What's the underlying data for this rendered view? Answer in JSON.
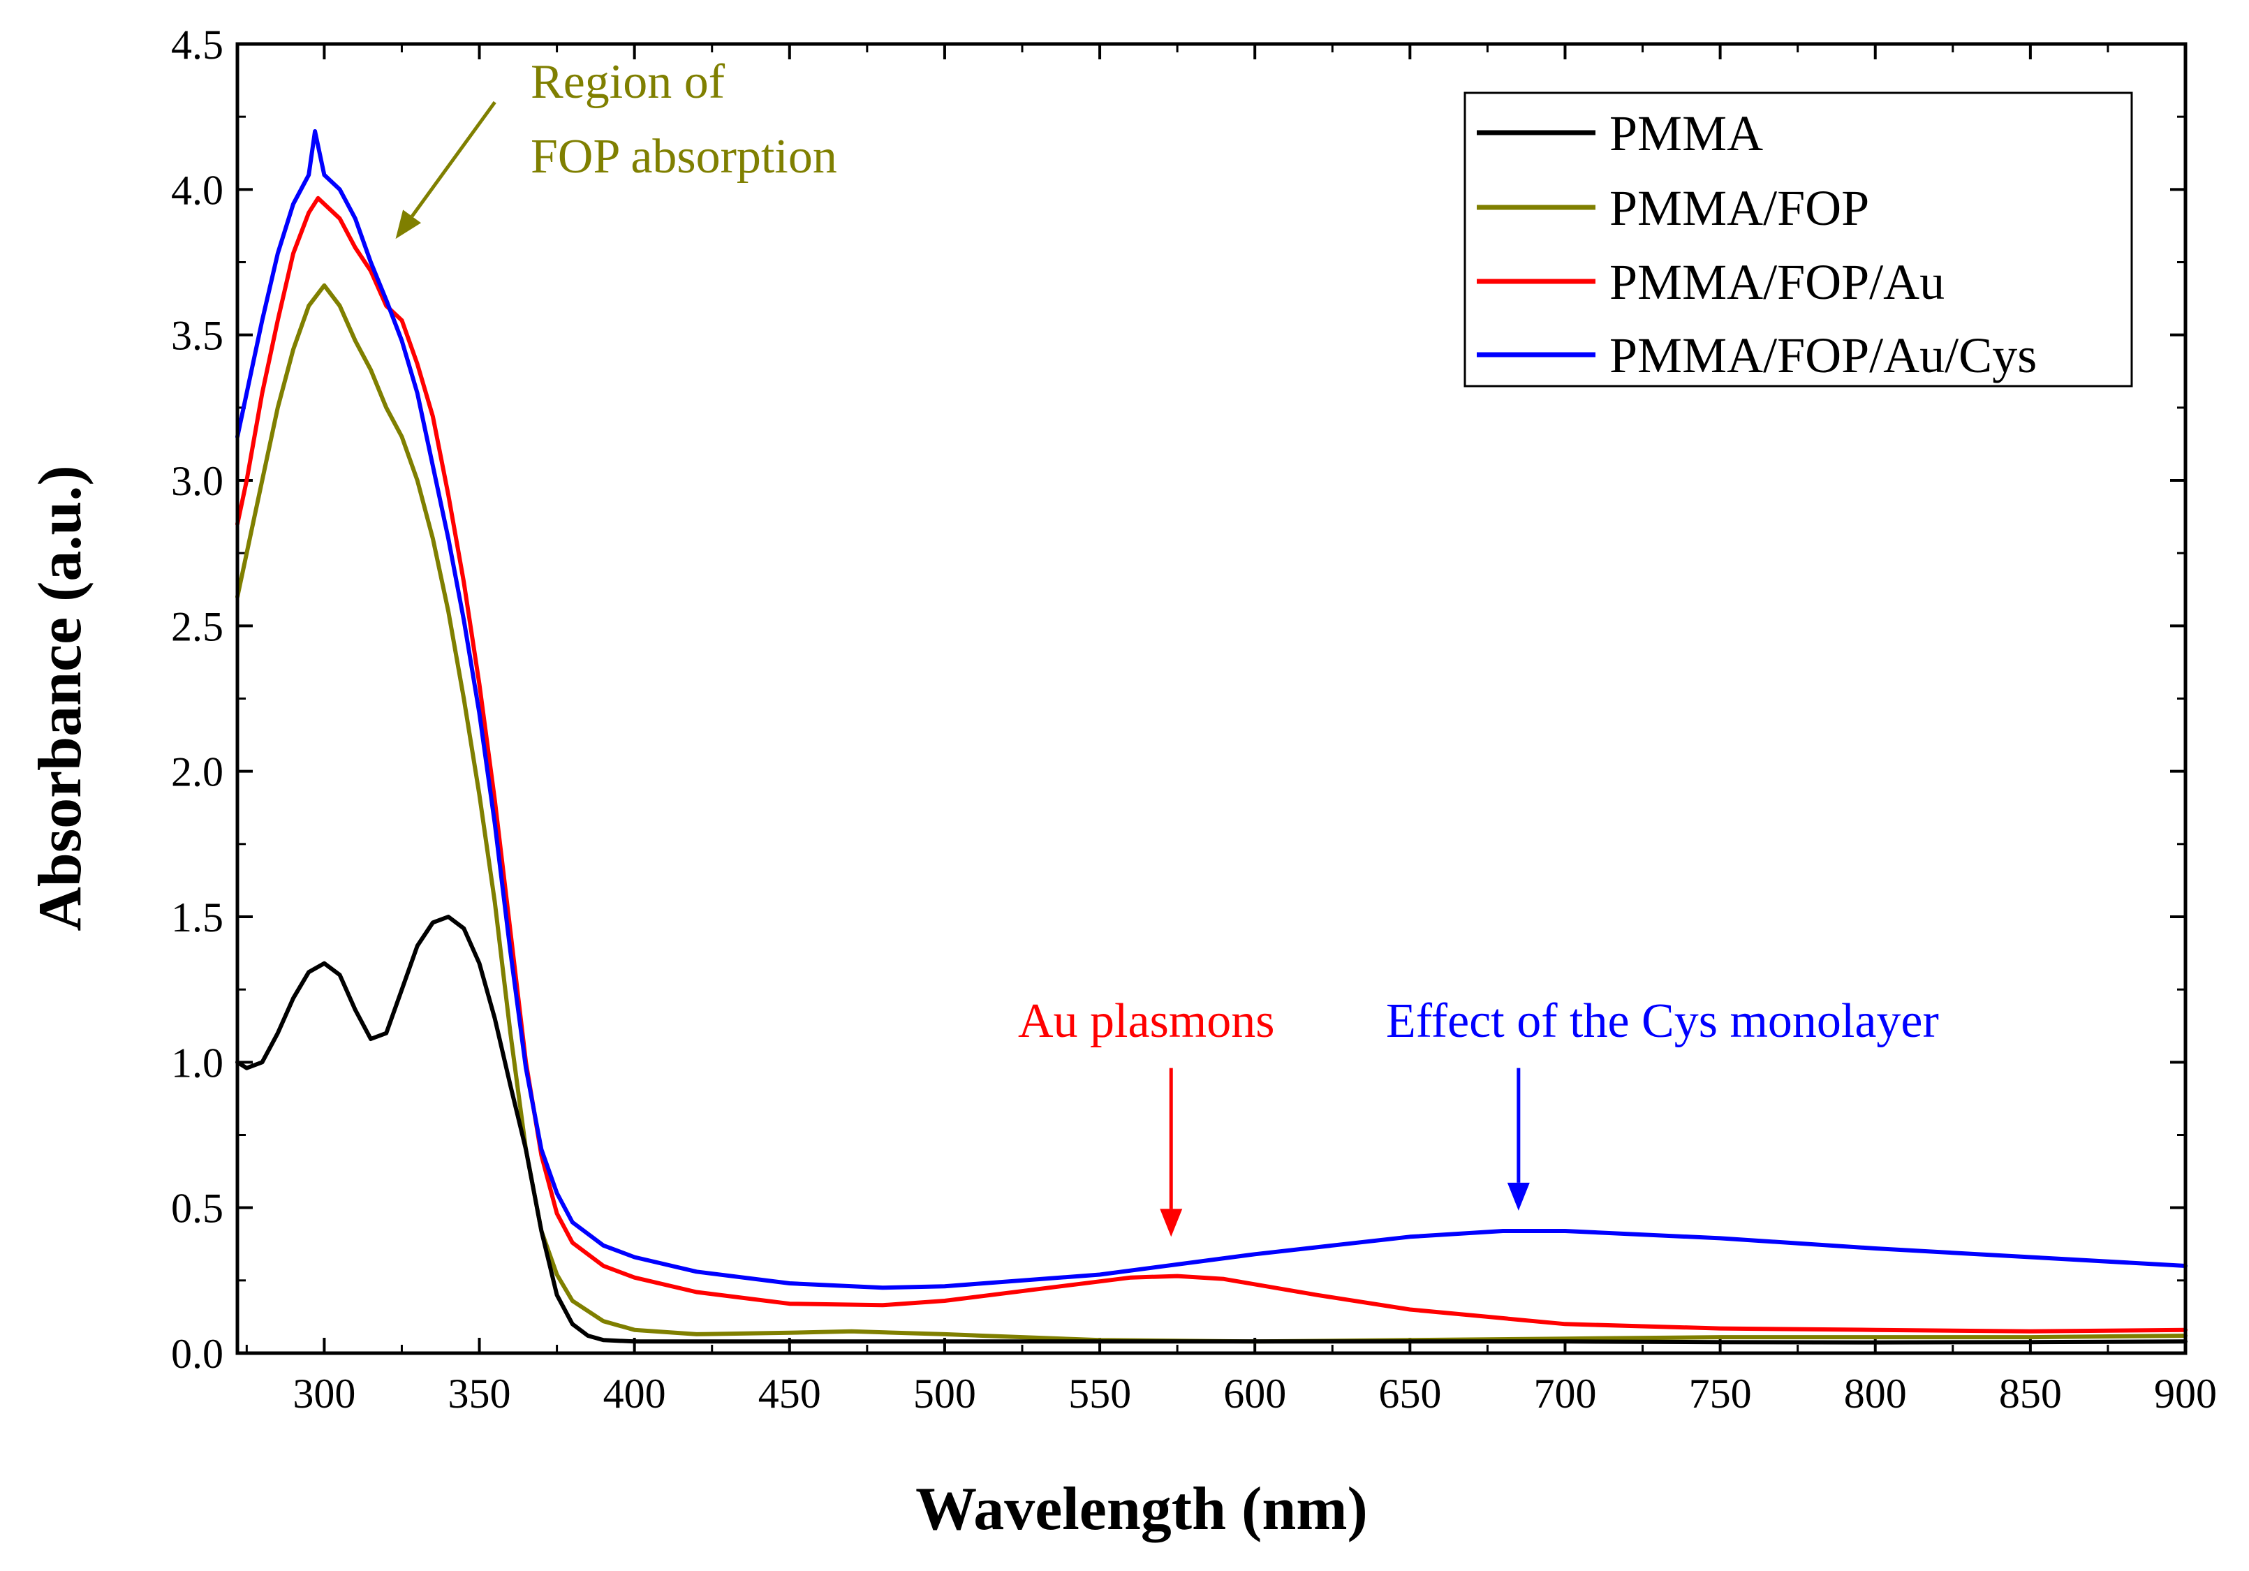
{
  "chart_data": {
    "type": "line",
    "xlabel": "Wavelength (nm)",
    "ylabel": "Absorbance (a.u.)",
    "xlim": [
      272,
      900
    ],
    "ylim": [
      0.0,
      4.5
    ],
    "x_ticks": [
      300,
      350,
      400,
      450,
      500,
      550,
      600,
      650,
      700,
      750,
      800,
      850,
      900
    ],
    "x_tick_labels": [
      "300",
      "350",
      "400",
      "450",
      "500",
      "550",
      "600",
      "650",
      "700",
      "750",
      "800",
      "850",
      "900"
    ],
    "y_ticks": [
      0.0,
      0.5,
      1.0,
      1.5,
      2.0,
      2.5,
      3.0,
      3.5,
      4.0,
      4.5
    ],
    "y_tick_labels": [
      "0.0",
      "0.5",
      "1.0",
      "1.5",
      "2.0",
      "2.5",
      "3.0",
      "3.5",
      "4.0",
      "4.5"
    ],
    "legend_position": "top-right",
    "grid": false,
    "series": [
      {
        "name": "PMMA",
        "color": "#000000",
        "points": [
          [
            272,
            1.0
          ],
          [
            275,
            0.98
          ],
          [
            280,
            1.0
          ],
          [
            285,
            1.1
          ],
          [
            290,
            1.22
          ],
          [
            295,
            1.31
          ],
          [
            300,
            1.34
          ],
          [
            305,
            1.3
          ],
          [
            310,
            1.18
          ],
          [
            315,
            1.08
          ],
          [
            320,
            1.1
          ],
          [
            325,
            1.25
          ],
          [
            330,
            1.4
          ],
          [
            335,
            1.48
          ],
          [
            340,
            1.5
          ],
          [
            345,
            1.46
          ],
          [
            350,
            1.34
          ],
          [
            355,
            1.15
          ],
          [
            360,
            0.92
          ],
          [
            365,
            0.7
          ],
          [
            370,
            0.42
          ],
          [
            375,
            0.2
          ],
          [
            380,
            0.1
          ],
          [
            385,
            0.06
          ],
          [
            390,
            0.045
          ],
          [
            400,
            0.04
          ],
          [
            450,
            0.04
          ],
          [
            500,
            0.04
          ],
          [
            550,
            0.04
          ],
          [
            600,
            0.04
          ],
          [
            650,
            0.04
          ],
          [
            700,
            0.04
          ],
          [
            750,
            0.038
          ],
          [
            800,
            0.037
          ],
          [
            850,
            0.038
          ],
          [
            900,
            0.04
          ]
        ]
      },
      {
        "name": "PMMA/FOP",
        "color": "#7F7F00",
        "points": [
          [
            272,
            2.6
          ],
          [
            275,
            2.75
          ],
          [
            280,
            3.0
          ],
          [
            285,
            3.25
          ],
          [
            290,
            3.45
          ],
          [
            295,
            3.6
          ],
          [
            300,
            3.67
          ],
          [
            305,
            3.6
          ],
          [
            310,
            3.48
          ],
          [
            315,
            3.38
          ],
          [
            320,
            3.25
          ],
          [
            325,
            3.15
          ],
          [
            330,
            3.0
          ],
          [
            335,
            2.8
          ],
          [
            340,
            2.55
          ],
          [
            345,
            2.25
          ],
          [
            350,
            1.92
          ],
          [
            355,
            1.55
          ],
          [
            360,
            1.1
          ],
          [
            365,
            0.7
          ],
          [
            370,
            0.42
          ],
          [
            375,
            0.27
          ],
          [
            380,
            0.18
          ],
          [
            390,
            0.11
          ],
          [
            400,
            0.08
          ],
          [
            420,
            0.065
          ],
          [
            450,
            0.07
          ],
          [
            470,
            0.075
          ],
          [
            500,
            0.065
          ],
          [
            550,
            0.045
          ],
          [
            600,
            0.04
          ],
          [
            650,
            0.045
          ],
          [
            700,
            0.05
          ],
          [
            750,
            0.055
          ],
          [
            800,
            0.055
          ],
          [
            850,
            0.055
          ],
          [
            900,
            0.06
          ]
        ]
      },
      {
        "name": "PMMA/FOP/Au",
        "color": "#FF0000",
        "points": [
          [
            272,
            2.85
          ],
          [
            275,
            3.0
          ],
          [
            280,
            3.3
          ],
          [
            285,
            3.55
          ],
          [
            290,
            3.78
          ],
          [
            295,
            3.92
          ],
          [
            298,
            3.97
          ],
          [
            300,
            3.95
          ],
          [
            305,
            3.9
          ],
          [
            310,
            3.8
          ],
          [
            315,
            3.72
          ],
          [
            320,
            3.6
          ],
          [
            325,
            3.55
          ],
          [
            330,
            3.4
          ],
          [
            335,
            3.22
          ],
          [
            340,
            2.95
          ],
          [
            345,
            2.65
          ],
          [
            350,
            2.3
          ],
          [
            355,
            1.9
          ],
          [
            360,
            1.45
          ],
          [
            365,
            1.0
          ],
          [
            370,
            0.68
          ],
          [
            375,
            0.48
          ],
          [
            380,
            0.38
          ],
          [
            390,
            0.3
          ],
          [
            400,
            0.26
          ],
          [
            420,
            0.21
          ],
          [
            450,
            0.17
          ],
          [
            480,
            0.165
          ],
          [
            500,
            0.18
          ],
          [
            530,
            0.22
          ],
          [
            560,
            0.26
          ],
          [
            575,
            0.265
          ],
          [
            590,
            0.255
          ],
          [
            620,
            0.2
          ],
          [
            650,
            0.15
          ],
          [
            700,
            0.1
          ],
          [
            750,
            0.085
          ],
          [
            800,
            0.08
          ],
          [
            850,
            0.075
          ],
          [
            900,
            0.08
          ]
        ]
      },
      {
        "name": "PMMA/FOP/Au/Cys",
        "color": "#0000FF",
        "points": [
          [
            272,
            3.15
          ],
          [
            275,
            3.3
          ],
          [
            280,
            3.55
          ],
          [
            285,
            3.78
          ],
          [
            290,
            3.95
          ],
          [
            295,
            4.05
          ],
          [
            297,
            4.2
          ],
          [
            300,
            4.05
          ],
          [
            305,
            4.0
          ],
          [
            310,
            3.9
          ],
          [
            315,
            3.75
          ],
          [
            320,
            3.62
          ],
          [
            325,
            3.48
          ],
          [
            330,
            3.3
          ],
          [
            335,
            3.05
          ],
          [
            340,
            2.8
          ],
          [
            345,
            2.52
          ],
          [
            350,
            2.2
          ],
          [
            355,
            1.82
          ],
          [
            360,
            1.38
          ],
          [
            365,
            0.98
          ],
          [
            370,
            0.7
          ],
          [
            375,
            0.55
          ],
          [
            380,
            0.45
          ],
          [
            390,
            0.37
          ],
          [
            400,
            0.33
          ],
          [
            420,
            0.28
          ],
          [
            450,
            0.24
          ],
          [
            480,
            0.225
          ],
          [
            500,
            0.23
          ],
          [
            550,
            0.27
          ],
          [
            600,
            0.34
          ],
          [
            650,
            0.4
          ],
          [
            680,
            0.42
          ],
          [
            700,
            0.42
          ],
          [
            750,
            0.395
          ],
          [
            800,
            0.36
          ],
          [
            850,
            0.33
          ],
          [
            900,
            0.3
          ]
        ]
      }
    ],
    "annotations": [
      {
        "text_lines": [
          "Region of",
          "FOP absorption"
        ],
        "color": "#7F7F00",
        "arrow_target": [
          323,
          3.83
        ],
        "arrow_tail": [
          355,
          4.3
        ]
      },
      {
        "text_lines": [
          "Au plasmons"
        ],
        "color": "#FF0000",
        "arrow_target": [
          573,
          0.4
        ],
        "arrow_tail": [
          573,
          0.98
        ]
      },
      {
        "text_lines": [
          "Effect of the Cys monolayer"
        ],
        "color": "#0000FF",
        "arrow_target": [
          685,
          0.49
        ],
        "arrow_tail": [
          685,
          0.98
        ]
      }
    ]
  }
}
